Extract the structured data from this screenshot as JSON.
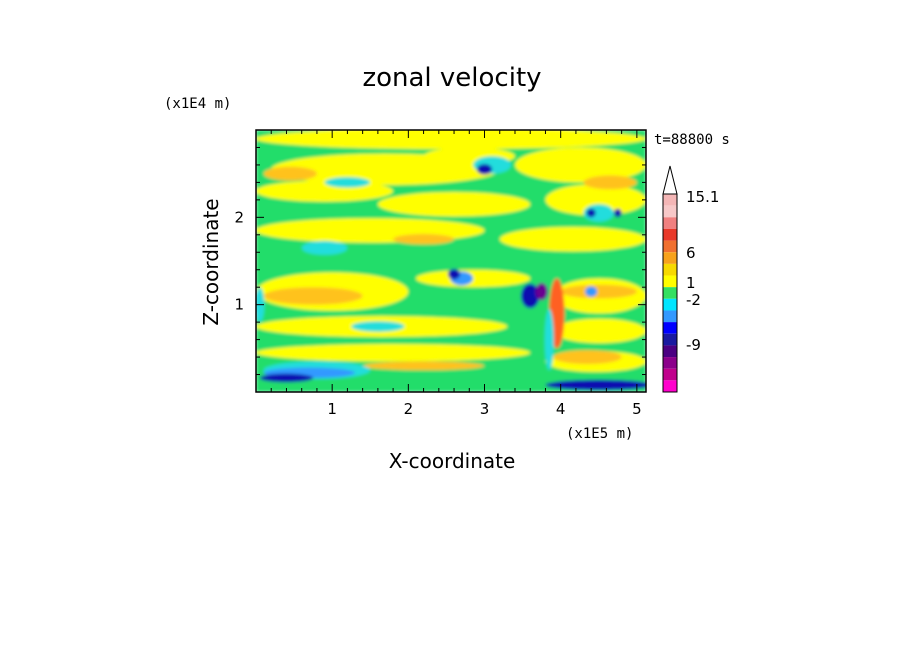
{
  "chart_data": {
    "type": "heatmap",
    "title": "zonal velocity",
    "xlabel": "X-coordinate",
    "ylabel": "Z-coordinate",
    "x_unit": "(x1E5 m)",
    "y_unit": "(x1E4 m)",
    "time_label": "t=88800 s",
    "xlim": [
      0,
      5.12
    ],
    "ylim": [
      0,
      3.0
    ],
    "x_ticks": [
      "1",
      "2",
      "3",
      "4",
      "5"
    ],
    "y_ticks": [
      "1",
      "2"
    ],
    "colorbar": {
      "levels": [
        "15.1",
        "6",
        "1",
        "-2",
        "-9"
      ],
      "colors": [
        "#ffffff",
        "#f4b6b6",
        "#f7c8c8",
        "#f08080",
        "#e8392a",
        "#f07030",
        "#f7a21b",
        "#f7d900",
        "#ffff00",
        "#33e060",
        "#00e5ff",
        "#3399ff",
        "#0000ff",
        "#1a1aa0",
        "#4b0082",
        "#8b008b",
        "#c0008c",
        "#ff00cc"
      ]
    },
    "palette": {
      "green": "#22dd6a",
      "yellow": "#ffff00",
      "orange": "#ffc21a",
      "cyan": "#22dddd",
      "blue": "#3399ff",
      "navy": "#1010b0",
      "red": "#ff6020"
    }
  }
}
